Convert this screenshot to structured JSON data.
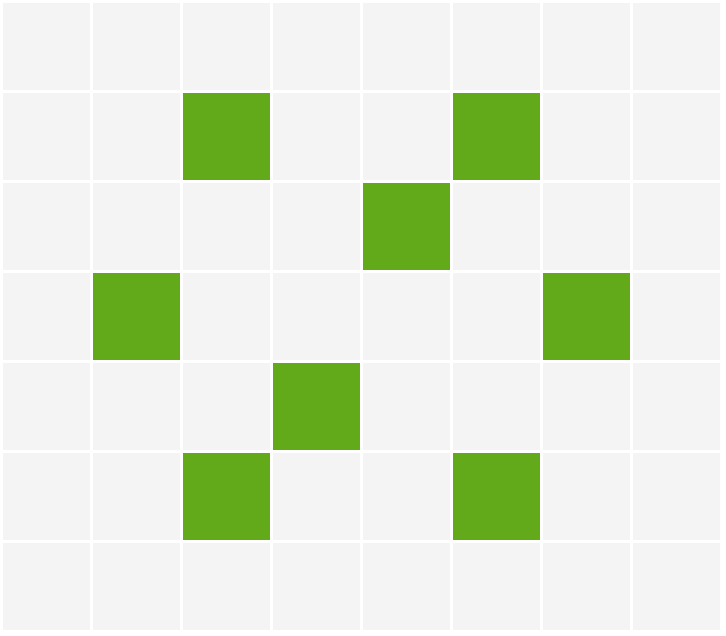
{
  "grid": {
    "rows": 7,
    "cols": 8,
    "empty_color": "#f4f4f4",
    "filled_color": "#63aa1a",
    "gap_color": "#ffffff",
    "filled_cells": [
      [
        1,
        2
      ],
      [
        1,
        5
      ],
      [
        2,
        4
      ],
      [
        3,
        1
      ],
      [
        3,
        6
      ],
      [
        4,
        3
      ],
      [
        5,
        2
      ],
      [
        5,
        5
      ]
    ]
  }
}
